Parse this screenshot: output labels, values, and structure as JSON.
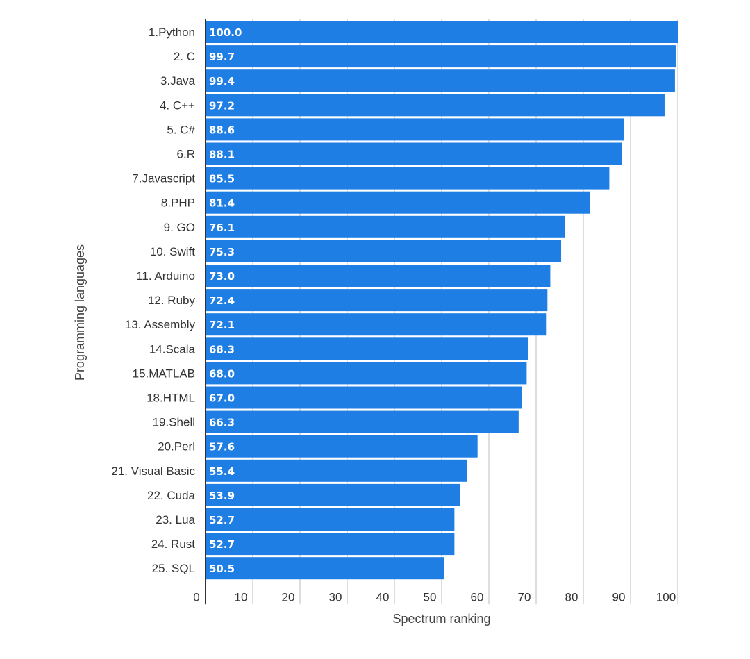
{
  "chart_data": {
    "type": "bar",
    "orientation": "horizontal",
    "categories": [
      "1.Python",
      "2. C",
      "3.Java",
      "4. C++",
      "5. C#",
      "6.R",
      "7.Javascript",
      "8.PHP",
      "9. GO",
      "10. Swift",
      "11. Arduino",
      "12. Ruby",
      "13. Assembly",
      "14.Scala",
      "15.MATLAB",
      "18.HTML",
      "19.Shell",
      "20.Perl",
      "21. Visual Basic",
      "22. Cuda",
      "23. Lua",
      "24. Rust",
      "25. SQL"
    ],
    "values": [
      100.0,
      99.7,
      99.4,
      97.2,
      88.6,
      88.1,
      85.5,
      81.4,
      76.1,
      75.3,
      73.0,
      72.4,
      72.1,
      68.3,
      68.0,
      67.0,
      66.3,
      57.6,
      55.4,
      53.9,
      52.7,
      52.7,
      50.5
    ],
    "value_labels": [
      "100.0",
      "99.7",
      "99.4",
      "97.2",
      "88.6",
      "88.1",
      "85.5",
      "81.4",
      "76.1",
      "75.3",
      "73.0",
      "72.4",
      "72.1",
      "68.3",
      "68.0",
      "67.0",
      "66.3",
      "57.6",
      "55.4",
      "53.9",
      "52.7",
      "52.7",
      "50.5"
    ],
    "xticks": [
      "0",
      "10",
      "20",
      "30",
      "40",
      "50",
      "60",
      "70",
      "80",
      "90",
      "100"
    ],
    "xlim": [
      0,
      100
    ],
    "xlabel": "Spectrum ranking",
    "ylabel": "Programming languages",
    "grid": "vertical",
    "bar_color": "#1e7ee4"
  }
}
